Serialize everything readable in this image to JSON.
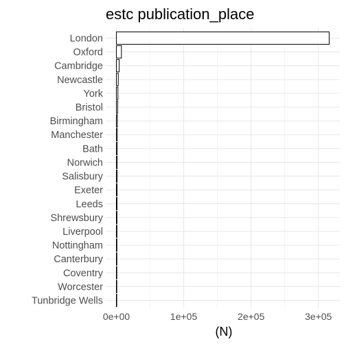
{
  "chart_data": {
    "type": "bar",
    "orientation": "horizontal",
    "title": "estc publication_place",
    "xlabel": "(N)",
    "ylabel": "",
    "categories": [
      "London",
      "Oxford",
      "Cambridge",
      "Newcastle",
      "York",
      "Bristol",
      "Birmingham",
      "Manchester",
      "Bath",
      "Norwich",
      "Salisbury",
      "Exeter",
      "Leeds",
      "Shrewsbury",
      "Liverpool",
      "Nottingham",
      "Canterbury",
      "Coventry",
      "Worcester",
      "Tunbridge Wells"
    ],
    "values": [
      316000,
      7500,
      4200,
      2800,
      2300,
      2000,
      1500,
      1350,
      1300,
      1250,
      1150,
      1100,
      950,
      900,
      850,
      800,
      750,
      700,
      650,
      600
    ],
    "xlim": [
      0,
      320000
    ],
    "xticks": [
      0,
      100000,
      200000,
      300000
    ],
    "xtick_labels": [
      "0e+00",
      "1e+05",
      "2e+05",
      "3e+05"
    ],
    "grid": true,
    "colors": {
      "bar_fill": "#ffffff",
      "bar_stroke": "#000000",
      "grid": "#e6e6e6",
      "text": "#4d4d4d"
    }
  }
}
